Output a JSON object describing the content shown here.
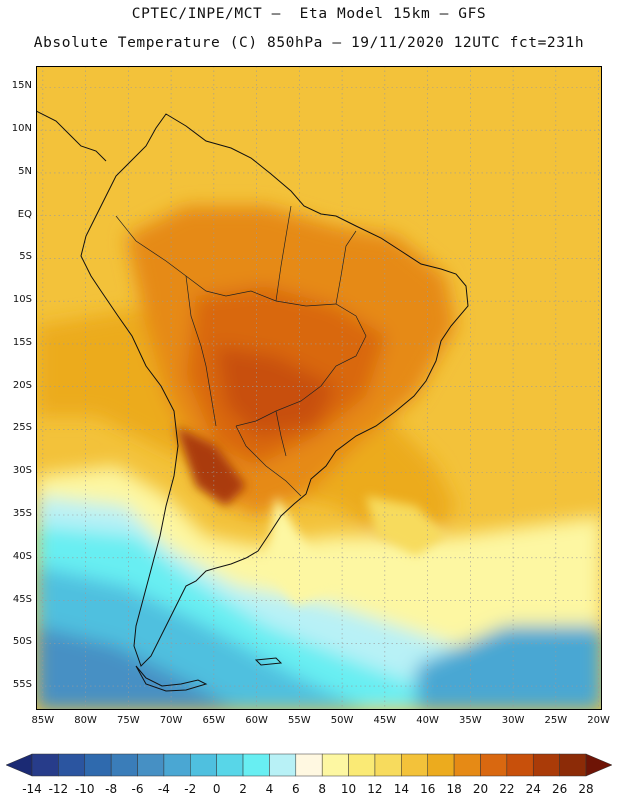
{
  "header": {
    "line1": "CPTEC/INPE/MCT –  Eta Model 15km – GFS",
    "line2": "Absolute Temperature (C) 850hPa – 19/11/2020 12UTC fct=231h"
  },
  "axes": {
    "lat_labels": [
      "15N",
      "10N",
      "5N",
      "EQ",
      "5S",
      "10S",
      "15S",
      "20S",
      "25S",
      "30S",
      "35S",
      "40S",
      "45S",
      "50S",
      "55S"
    ],
    "lat_values": [
      15,
      10,
      5,
      0,
      -5,
      -10,
      -15,
      -20,
      -25,
      -30,
      -35,
      -40,
      -45,
      -50,
      -55
    ],
    "lon_labels": [
      "85W",
      "80W",
      "75W",
      "70W",
      "65W",
      "60W",
      "55W",
      "50W",
      "45W",
      "40W",
      "35W",
      "30W",
      "25W",
      "20W"
    ],
    "lon_values": [
      -85,
      -80,
      -75,
      -70,
      -65,
      -60,
      -55,
      -50,
      -45,
      -40,
      -35,
      -30,
      -25,
      -20
    ],
    "lat_range": [
      -57.8,
      17.5
    ],
    "lon_range": [
      -85.8,
      -19.6
    ]
  },
  "colorbar": {
    "labels": [
      "-14",
      "-12",
      "-10",
      "-8",
      "-6",
      "-4",
      "-2",
      "0",
      "2",
      "4",
      "6",
      "8",
      "10",
      "12",
      "14",
      "16",
      "18",
      "20",
      "22",
      "24",
      "26",
      "28"
    ],
    "colors": [
      "#273c8a",
      "#2b55a0",
      "#2f6aae",
      "#3a7db9",
      "#4690c4",
      "#4aa7d3",
      "#4fc0df",
      "#58d6e8",
      "#68eef2",
      "#b8f1f6",
      "#fff8e1",
      "#fdf7a2",
      "#faea75",
      "#f7db5d",
      "#f3c23a",
      "#ecab1e",
      "#e68a15",
      "#d96810",
      "#c8500b",
      "#aa3b08",
      "#8c2b07"
    ],
    "under_color": "#1b2a74",
    "over_color": "#6e1406"
  }
}
